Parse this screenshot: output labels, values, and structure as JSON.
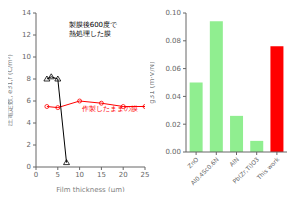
{
  "chart_data": [
    {
      "type": "line",
      "xlabel": "Film thickness (μm)",
      "ylabel": "圧電定数, e31,f (C/m²)",
      "xlim": [
        0,
        25
      ],
      "ylim": [
        0,
        14
      ],
      "xticks": [
        0,
        5,
        10,
        15,
        20,
        25
      ],
      "yticks": [
        0,
        2,
        4,
        6,
        8,
        10,
        12,
        14
      ],
      "grid": false,
      "series": [
        {
          "color": "red",
          "marker": "circle",
          "x": [
            2.5,
            5,
            10,
            15,
            20,
            25
          ],
          "values": [
            5.5,
            5.4,
            6.0,
            5.8,
            5.5,
            5.5
          ]
        },
        {
          "color": "black",
          "marker": "triangle",
          "x": [
            2.5,
            3.5,
            5,
            7
          ],
          "values": [
            8.0,
            8.2,
            8.0,
            0.4
          ]
        }
      ],
      "annotations": [
        {
          "text": "製膜後600度で\n熱処理した膜",
          "color": "black"
        },
        {
          "text": "作製したままの膜",
          "color": "red"
        }
      ]
    },
    {
      "type": "bar",
      "ylabel": "g31 (m·V/N)",
      "categories": [
        "ZnO",
        "Al0.4Sc0.6N",
        "AlN",
        "Pb(Zr,Ti)O3",
        "This work"
      ],
      "values": [
        0.05,
        0.094,
        0.026,
        0.008,
        0.076
      ],
      "colors": [
        "#90EE90",
        "#90EE90",
        "#90EE90",
        "#90EE90",
        "red"
      ],
      "ylim": [
        0,
        0.1
      ],
      "yticks": [
        {
          "value": 0,
          "label": "0.00"
        },
        {
          "value": 0.02,
          "label": "0.02"
        },
        {
          "value": 0.04,
          "label": "0.04"
        },
        {
          "value": 0.06,
          "label": "0.06"
        },
        {
          "value": 0.08,
          "label": "0.08"
        },
        {
          "value": 0.1,
          "label": "0.10"
        }
      ],
      "grid": false
    }
  ]
}
